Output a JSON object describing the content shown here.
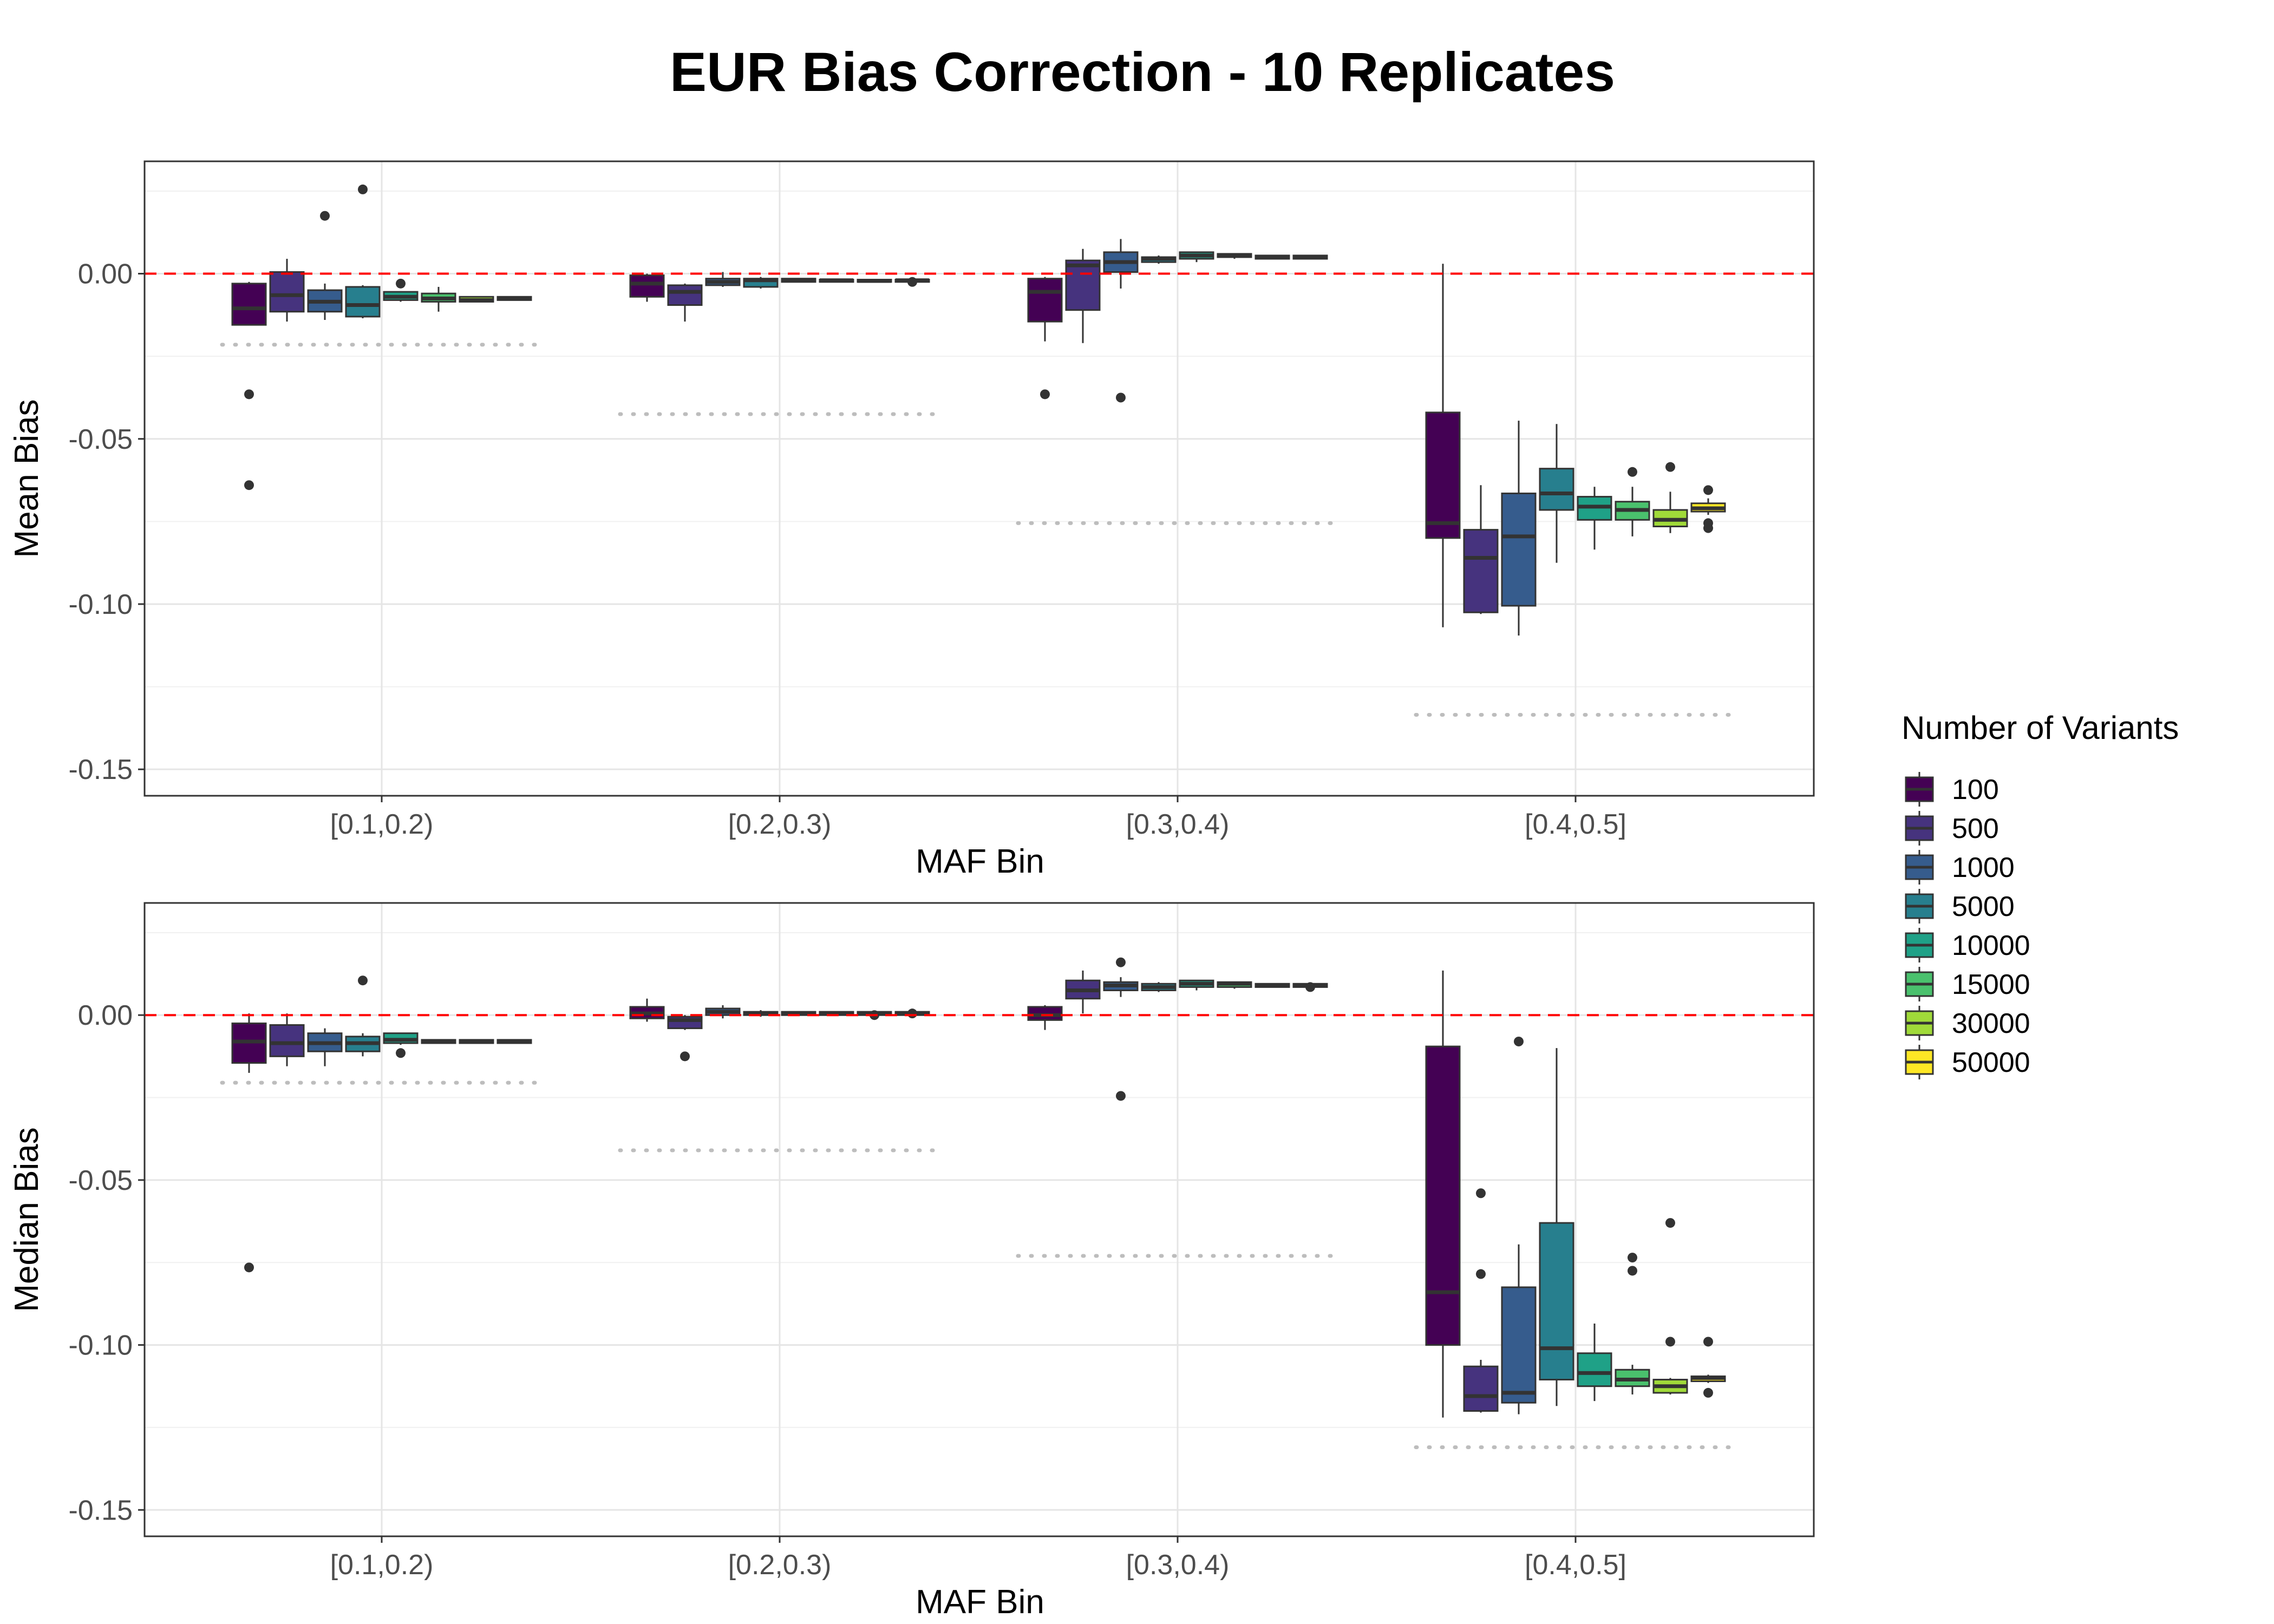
{
  "title": "EUR Bias Correction - 10 Replicates",
  "legend": {
    "title": "Number of Variants",
    "placement": "right",
    "items": [
      {
        "label": "100",
        "color": "#440154"
      },
      {
        "label": "500",
        "color": "#46337e"
      },
      {
        "label": "1000",
        "color": "#365c8d"
      },
      {
        "label": "5000",
        "color": "#277f8e"
      },
      {
        "label": "10000",
        "color": "#1fa187"
      },
      {
        "label": "15000",
        "color": "#4ac16d"
      },
      {
        "label": "30000",
        "color": "#a0da39"
      },
      {
        "label": "50000",
        "color": "#fde725"
      }
    ]
  },
  "chart_data": [
    {
      "type": "boxplot",
      "xlabel": "MAF Bin",
      "ylabel": "Mean Bias",
      "ylim": [
        -0.158,
        0.034
      ],
      "yticks": [
        0.0,
        -0.05,
        -0.1,
        -0.15
      ],
      "ytick_labels": [
        "0.00",
        "-0.05",
        "-0.10",
        "-0.15"
      ],
      "grid": true,
      "reference_line": {
        "y": 0.0,
        "style": "dashed",
        "color": "#ff0000"
      },
      "categories": [
        "[0.1,0.2)",
        "[0.2,0.3)",
        "[0.3,0.4)",
        "[0.4,0.5]"
      ],
      "dotted_segments": [
        -0.0215,
        -0.0425,
        -0.0755,
        -0.1335
      ],
      "series": [
        {
          "name": "100",
          "boxes": [
            {
              "q1": -0.0155,
              "median": -0.0105,
              "q3": -0.003,
              "lo": -0.0155,
              "hi": -0.0025,
              "outliers": [
                -0.0365,
                -0.064
              ]
            },
            {
              "q1": -0.007,
              "median": -0.003,
              "q3": -0.0005,
              "lo": -0.0085,
              "hi": 0.0,
              "outliers": []
            },
            {
              "q1": -0.0145,
              "median": -0.0055,
              "q3": -0.0015,
              "lo": -0.0205,
              "hi": -0.001,
              "outliers": [
                -0.0365
              ]
            },
            {
              "q1": -0.08,
              "median": -0.0755,
              "q3": -0.042,
              "lo": -0.107,
              "hi": 0.003,
              "outliers": []
            }
          ]
        },
        {
          "name": "500",
          "boxes": [
            {
              "q1": -0.0115,
              "median": -0.0065,
              "q3": 0.0005,
              "lo": -0.0145,
              "hi": 0.0045,
              "outliers": []
            },
            {
              "q1": -0.0095,
              "median": -0.0055,
              "q3": -0.0035,
              "lo": -0.0145,
              "hi": -0.003,
              "outliers": []
            },
            {
              "q1": -0.011,
              "median": 0.0025,
              "q3": 0.004,
              "lo": -0.021,
              "hi": 0.0075,
              "outliers": []
            },
            {
              "q1": -0.1025,
              "median": -0.086,
              "q3": -0.0775,
              "lo": -0.103,
              "hi": -0.064,
              "outliers": []
            }
          ]
        },
        {
          "name": "1000",
          "boxes": [
            {
              "q1": -0.0115,
              "median": -0.0085,
              "q3": -0.005,
              "lo": -0.014,
              "hi": -0.003,
              "outliers": [
                0.0175
              ]
            },
            {
              "q1": -0.0035,
              "median": -0.0025,
              "q3": -0.0015,
              "lo": -0.004,
              "hi": 0.0005,
              "outliers": []
            },
            {
              "q1": 0.0005,
              "median": 0.0035,
              "q3": 0.0065,
              "lo": -0.0045,
              "hi": 0.0105,
              "outliers": [
                -0.0375
              ]
            },
            {
              "q1": -0.1005,
              "median": -0.0795,
              "q3": -0.0665,
              "lo": -0.1095,
              "hi": -0.0445,
              "outliers": []
            }
          ]
        },
        {
          "name": "5000",
          "boxes": [
            {
              "q1": -0.013,
              "median": -0.0095,
              "q3": -0.004,
              "lo": -0.0135,
              "hi": -0.0035,
              "outliers": [
                0.0255
              ]
            },
            {
              "q1": -0.004,
              "median": -0.002,
              "q3": -0.0015,
              "lo": -0.0045,
              "hi": -0.001,
              "outliers": []
            },
            {
              "q1": 0.0035,
              "median": 0.0045,
              "q3": 0.005,
              "lo": 0.003,
              "hi": 0.0055,
              "outliers": []
            },
            {
              "q1": -0.0715,
              "median": -0.0665,
              "q3": -0.059,
              "lo": -0.0875,
              "hi": -0.0455,
              "outliers": []
            }
          ]
        },
        {
          "name": "10000",
          "boxes": [
            {
              "q1": -0.008,
              "median": -0.007,
              "q3": -0.0055,
              "lo": -0.0085,
              "hi": -0.0055,
              "outliers": [
                -0.003
              ]
            },
            {
              "q1": -0.0025,
              "median": -0.002,
              "q3": -0.0015,
              "lo": -0.0025,
              "hi": -0.0015,
              "outliers": []
            },
            {
              "q1": 0.0045,
              "median": 0.0055,
              "q3": 0.0065,
              "lo": 0.0035,
              "hi": 0.0065,
              "outliers": []
            },
            {
              "q1": -0.0745,
              "median": -0.0705,
              "q3": -0.0675,
              "lo": -0.0835,
              "hi": -0.0645,
              "outliers": []
            }
          ]
        },
        {
          "name": "15000",
          "boxes": [
            {
              "q1": -0.0085,
              "median": -0.0075,
              "q3": -0.006,
              "lo": -0.0115,
              "hi": -0.004,
              "outliers": []
            },
            {
              "q1": -0.0025,
              "median": -0.002,
              "q3": -0.0018,
              "lo": -0.0025,
              "hi": -0.0015,
              "outliers": []
            },
            {
              "q1": 0.005,
              "median": 0.0055,
              "q3": 0.006,
              "lo": 0.0045,
              "hi": 0.006,
              "outliers": []
            },
            {
              "q1": -0.0745,
              "median": -0.0715,
              "q3": -0.069,
              "lo": -0.0795,
              "hi": -0.0645,
              "outliers": [
                -0.06
              ]
            }
          ]
        },
        {
          "name": "30000",
          "boxes": [
            {
              "q1": -0.0085,
              "median": -0.008,
              "q3": -0.007,
              "lo": -0.0085,
              "hi": -0.007,
              "outliers": []
            },
            {
              "q1": -0.0025,
              "median": -0.0022,
              "q3": -0.0018,
              "lo": -0.0025,
              "hi": -0.0018,
              "outliers": []
            },
            {
              "q1": 0.0045,
              "median": 0.005,
              "q3": 0.0055,
              "lo": 0.0045,
              "hi": 0.0055,
              "outliers": []
            },
            {
              "q1": -0.0765,
              "median": -0.0745,
              "q3": -0.0715,
              "lo": -0.0785,
              "hi": -0.066,
              "outliers": [
                -0.0585
              ]
            }
          ]
        },
        {
          "name": "50000",
          "boxes": [
            {
              "q1": -0.008,
              "median": -0.0075,
              "q3": -0.007,
              "lo": -0.008,
              "hi": -0.007,
              "outliers": []
            },
            {
              "q1": -0.0025,
              "median": -0.002,
              "q3": -0.0018,
              "lo": -0.0025,
              "hi": -0.0018,
              "outliers": [
                -0.0025
              ]
            },
            {
              "q1": 0.0045,
              "median": 0.005,
              "q3": 0.0055,
              "lo": 0.0045,
              "hi": 0.0055,
              "outliers": []
            },
            {
              "q1": -0.072,
              "median": -0.071,
              "q3": -0.0695,
              "lo": -0.073,
              "hi": -0.068,
              "outliers": [
                -0.0655,
                -0.0755,
                -0.077
              ]
            }
          ]
        }
      ]
    },
    {
      "type": "boxplot",
      "xlabel": "MAF Bin",
      "ylabel": "Median Bias",
      "ylim": [
        -0.158,
        0.034
      ],
      "yticks": [
        0.0,
        -0.05,
        -0.1,
        -0.15
      ],
      "ytick_labels": [
        "0.00",
        "-0.05",
        "-0.10",
        "-0.15"
      ],
      "grid": true,
      "reference_line": {
        "y": 0.0,
        "style": "dashed",
        "color": "#ff0000"
      },
      "categories": [
        "[0.1,0.2)",
        "[0.2,0.3)",
        "[0.3,0.4)",
        "[0.4,0.5]"
      ],
      "dotted_segments": [
        -0.0205,
        -0.041,
        -0.073,
        -0.131
      ],
      "series": [
        {
          "name": "100",
          "boxes": [
            {
              "q1": -0.0145,
              "median": -0.008,
              "q3": -0.0025,
              "lo": -0.0175,
              "hi": 0.0005,
              "outliers": [
                -0.0765
              ]
            },
            {
              "q1": -0.001,
              "median": 0.0005,
              "q3": 0.0025,
              "lo": -0.002,
              "hi": 0.005,
              "outliers": []
            },
            {
              "q1": -0.0015,
              "median": 0.0,
              "q3": 0.0025,
              "lo": -0.0045,
              "hi": 0.003,
              "outliers": []
            },
            {
              "q1": -0.1,
              "median": -0.084,
              "q3": -0.0095,
              "lo": -0.122,
              "hi": 0.0135,
              "outliers": []
            }
          ]
        },
        {
          "name": "500",
          "boxes": [
            {
              "q1": -0.0125,
              "median": -0.0085,
              "q3": -0.003,
              "lo": -0.0155,
              "hi": 0.0005,
              "outliers": []
            },
            {
              "q1": -0.004,
              "median": -0.0015,
              "q3": -0.0005,
              "lo": -0.0045,
              "hi": 0.0,
              "outliers": [
                -0.0125
              ]
            },
            {
              "q1": 0.005,
              "median": 0.0075,
              "q3": 0.0105,
              "lo": 0.0005,
              "hi": 0.0135,
              "outliers": []
            },
            {
              "q1": -0.12,
              "median": -0.1155,
              "q3": -0.1065,
              "lo": -0.1205,
              "hi": -0.1045,
              "outliers": [
                -0.0785,
                -0.054
              ]
            }
          ]
        },
        {
          "name": "1000",
          "boxes": [
            {
              "q1": -0.011,
              "median": -0.0085,
              "q3": -0.0055,
              "lo": -0.0155,
              "hi": -0.004,
              "outliers": []
            },
            {
              "q1": 0.0,
              "median": 0.001,
              "q3": 0.002,
              "lo": -0.001,
              "hi": 0.003,
              "outliers": []
            },
            {
              "q1": 0.0075,
              "median": 0.009,
              "q3": 0.01,
              "lo": 0.0055,
              "hi": 0.0115,
              "outliers": [
                0.016,
                -0.0245
              ]
            },
            {
              "q1": -0.1175,
              "median": -0.1145,
              "q3": -0.0825,
              "lo": -0.121,
              "hi": -0.0695,
              "outliers": [
                -0.008
              ]
            }
          ]
        },
        {
          "name": "5000",
          "boxes": [
            {
              "q1": -0.011,
              "median": -0.0085,
              "q3": -0.0065,
              "lo": -0.0125,
              "hi": -0.0055,
              "outliers": [
                0.0105
              ]
            },
            {
              "q1": 0.0,
              "median": 0.0005,
              "q3": 0.001,
              "lo": -0.0005,
              "hi": 0.0015,
              "outliers": []
            },
            {
              "q1": 0.0075,
              "median": 0.0085,
              "q3": 0.0095,
              "lo": 0.007,
              "hi": 0.01,
              "outliers": []
            },
            {
              "q1": -0.1105,
              "median": -0.101,
              "q3": -0.063,
              "lo": -0.1185,
              "hi": -0.01,
              "outliers": []
            }
          ]
        },
        {
          "name": "10000",
          "boxes": [
            {
              "q1": -0.0085,
              "median": -0.0075,
              "q3": -0.0055,
              "lo": -0.009,
              "hi": -0.0055,
              "outliers": [
                -0.0115
              ]
            },
            {
              "q1": 0.0,
              "median": 0.0005,
              "q3": 0.001,
              "lo": 0.0,
              "hi": 0.001,
              "outliers": []
            },
            {
              "q1": 0.0085,
              "median": 0.0095,
              "q3": 0.0105,
              "lo": 0.0075,
              "hi": 0.0105,
              "outliers": []
            },
            {
              "q1": -0.1125,
              "median": -0.1085,
              "q3": -0.1025,
              "lo": -0.117,
              "hi": -0.0935,
              "outliers": []
            }
          ]
        },
        {
          "name": "15000",
          "boxes": [
            {
              "q1": -0.0085,
              "median": -0.008,
              "q3": -0.0075,
              "lo": -0.0085,
              "hi": -0.0075,
              "outliers": []
            },
            {
              "q1": 0.0,
              "median": 0.0005,
              "q3": 0.001,
              "lo": 0.0,
              "hi": 0.001,
              "outliers": []
            },
            {
              "q1": 0.0085,
              "median": 0.0095,
              "q3": 0.01,
              "lo": 0.008,
              "hi": 0.01,
              "outliers": []
            },
            {
              "q1": -0.1125,
              "median": -0.1105,
              "q3": -0.1075,
              "lo": -0.115,
              "hi": -0.106,
              "outliers": [
                -0.0735,
                -0.0775
              ]
            }
          ]
        },
        {
          "name": "30000",
          "boxes": [
            {
              "q1": -0.0085,
              "median": -0.008,
              "q3": -0.0075,
              "lo": -0.0085,
              "hi": -0.0075,
              "outliers": []
            },
            {
              "q1": 0.0,
              "median": 0.0005,
              "q3": 0.001,
              "lo": 0.0,
              "hi": 0.001,
              "outliers": [
                0.0
              ]
            },
            {
              "q1": 0.0085,
              "median": 0.009,
              "q3": 0.0095,
              "lo": 0.0085,
              "hi": 0.0095,
              "outliers": []
            },
            {
              "q1": -0.1145,
              "median": -0.1125,
              "q3": -0.1105,
              "lo": -0.115,
              "hi": -0.11,
              "outliers": [
                -0.063,
                -0.099
              ]
            }
          ]
        },
        {
          "name": "50000",
          "boxes": [
            {
              "q1": -0.0085,
              "median": -0.008,
              "q3": -0.0075,
              "lo": -0.0085,
              "hi": -0.0075,
              "outliers": []
            },
            {
              "q1": 0.0,
              "median": 0.0005,
              "q3": 0.001,
              "lo": 0.0,
              "hi": 0.001,
              "outliers": [
                0.0005
              ]
            },
            {
              "q1": 0.0085,
              "median": 0.009,
              "q3": 0.0095,
              "lo": 0.0085,
              "hi": 0.0095,
              "outliers": [
                0.0085
              ]
            },
            {
              "q1": -0.111,
              "median": -0.11,
              "q3": -0.1095,
              "lo": -0.1115,
              "hi": -0.109,
              "outliers": [
                -0.099,
                -0.1145
              ]
            }
          ]
        }
      ]
    }
  ]
}
